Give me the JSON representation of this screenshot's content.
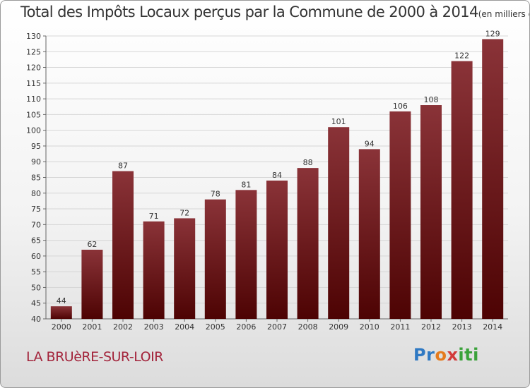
{
  "chart_data": {
    "type": "bar",
    "title": "Total des Impôts Locaux perçus par la Commune de 2000 à 2014",
    "subtitle": "(en milliers d'€)",
    "categories": [
      "2000",
      "2001",
      "2002",
      "2003",
      "2004",
      "2005",
      "2006",
      "2007",
      "2008",
      "2009",
      "2010",
      "2011",
      "2012",
      "2013",
      "2014"
    ],
    "values": [
      44,
      62,
      87,
      71,
      72,
      78,
      81,
      84,
      88,
      101,
      94,
      106,
      108,
      122,
      129
    ],
    "ylim": [
      40,
      130
    ],
    "yticks": [
      40,
      45,
      50,
      55,
      60,
      65,
      70,
      75,
      80,
      85,
      90,
      95,
      100,
      105,
      110,
      115,
      120,
      125,
      130
    ],
    "grid": true,
    "xlabel": "",
    "ylabel": "",
    "colors": {
      "bar_top": "#8a3338",
      "bar_bottom": "#4d0303",
      "grid": "#d6d6d6"
    }
  },
  "commune_name": "LA BRUèRE-SUR-LOIR",
  "logo": {
    "parts": [
      "Pr",
      "o",
      "x",
      "iti"
    ]
  }
}
